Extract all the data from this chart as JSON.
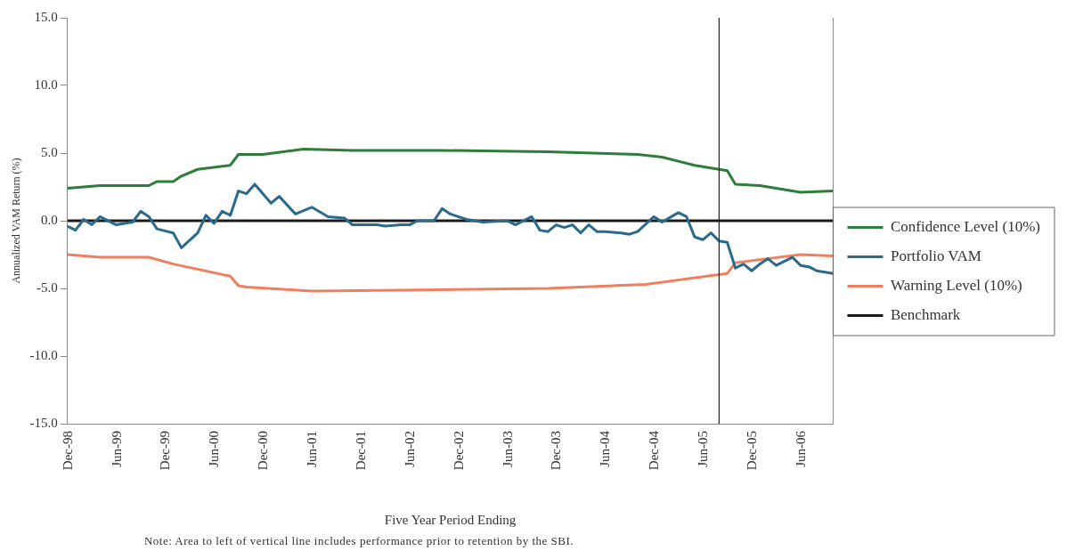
{
  "chart_data": {
    "type": "line",
    "xlabel": "Five Year Period Ending",
    "ylabel": "Annualized VAM Return (%)",
    "annotations": [
      "Note: Area to left of vertical line includes performance prior to retention by the SBI."
    ],
    "xlim": [
      "1998-12",
      "2006-10"
    ],
    "xticks": [
      {
        "value": "1998-12",
        "label": "Dec-98"
      },
      {
        "value": "1999-06",
        "label": "Jun-99"
      },
      {
        "value": "1999-12",
        "label": "Dec-99"
      },
      {
        "value": "2000-06",
        "label": "Jun-00"
      },
      {
        "value": "2000-12",
        "label": "Dec-00"
      },
      {
        "value": "2001-06",
        "label": "Jun-01"
      },
      {
        "value": "2001-12",
        "label": "Dec-01"
      },
      {
        "value": "2002-06",
        "label": "Jun-02"
      },
      {
        "value": "2002-12",
        "label": "Dec-02"
      },
      {
        "value": "2003-06",
        "label": "Jun-03"
      },
      {
        "value": "2003-12",
        "label": "Dec-03"
      },
      {
        "value": "2004-06",
        "label": "Jun-04"
      },
      {
        "value": "2004-12",
        "label": "Dec-04"
      },
      {
        "value": "2005-06",
        "label": "Jun-05"
      },
      {
        "value": "2005-12",
        "label": "Dec-05"
      },
      {
        "value": "2006-06",
        "label": "Jun-06"
      }
    ],
    "ylim": [
      -15,
      15
    ],
    "yticks": [
      {
        "value": -15,
        "label": "-15.0"
      },
      {
        "value": -10,
        "label": "-10.0"
      },
      {
        "value": -5,
        "label": "-5.0"
      },
      {
        "value": 0,
        "label": "0.0"
      },
      {
        "value": 5,
        "label": "5.0"
      },
      {
        "value": 10,
        "label": "10.0"
      },
      {
        "value": 15,
        "label": "15.0"
      }
    ],
    "grid": false,
    "legend": "right",
    "ref_lines": [
      {
        "axis": "x",
        "value": "2005-08",
        "color": "#222222"
      }
    ],
    "series": [
      {
        "name": "Confidence Level (10%)",
        "color": "#2e7d3a",
        "x": [
          "1998-12",
          "1999-04",
          "1999-10",
          "1999-11",
          "2000-01",
          "2000-02",
          "2000-04",
          "2000-08",
          "2000-09",
          "2000-12",
          "2001-05",
          "2001-11",
          "2002-10",
          "2003-11",
          "2004-10",
          "2005-01",
          "2005-05",
          "2005-09",
          "2005-10",
          "2006-01",
          "2006-06",
          "2006-10"
        ],
        "values": [
          2.4,
          2.6,
          2.6,
          2.9,
          2.9,
          3.3,
          3.8,
          4.1,
          4.9,
          4.9,
          5.3,
          5.2,
          5.2,
          5.1,
          4.9,
          4.7,
          4.1,
          3.7,
          2.7,
          2.6,
          2.1,
          2.2
        ]
      },
      {
        "name": "Portfolio VAM",
        "color": "#2a6a8c",
        "x": [
          "1998-12",
          "1999-01",
          "1999-02",
          "1999-03",
          "1999-04",
          "1999-06",
          "1999-08",
          "1999-09",
          "1999-10",
          "1999-11",
          "2000-01",
          "2000-02",
          "2000-04",
          "2000-05",
          "2000-06",
          "2000-07",
          "2000-08",
          "2000-09",
          "2000-10",
          "2000-11",
          "2001-01",
          "2001-02",
          "2001-04",
          "2001-06",
          "2001-08",
          "2001-10",
          "2001-11",
          "2002-02",
          "2002-03",
          "2002-05",
          "2002-06",
          "2002-07",
          "2002-09",
          "2002-10",
          "2002-11",
          "2003-01",
          "2003-03",
          "2003-06",
          "2003-07",
          "2003-09",
          "2003-10",
          "2003-11",
          "2003-12",
          "2004-01",
          "2004-02",
          "2004-03",
          "2004-04",
          "2004-05",
          "2004-06",
          "2004-08",
          "2004-09",
          "2004-10",
          "2004-12",
          "2005-01",
          "2005-03",
          "2005-04",
          "2005-05",
          "2005-06",
          "2005-07",
          "2005-08",
          "2005-09",
          "2005-10",
          "2005-11",
          "2005-12",
          "2006-01",
          "2006-02",
          "2006-03",
          "2006-05",
          "2006-06",
          "2006-07",
          "2006-08",
          "2006-10"
        ],
        "values": [
          -0.4,
          -0.7,
          0.1,
          -0.3,
          0.3,
          -0.3,
          -0.1,
          0.7,
          0.3,
          -0.6,
          -0.9,
          -2.0,
          -0.9,
          0.4,
          -0.2,
          0.7,
          0.4,
          2.2,
          2.0,
          2.7,
          1.3,
          1.8,
          0.5,
          1.0,
          0.3,
          0.2,
          -0.3,
          -0.3,
          -0.4,
          -0.3,
          -0.3,
          0.0,
          0.0,
          0.9,
          0.5,
          0.1,
          -0.1,
          0.0,
          -0.3,
          0.3,
          -0.7,
          -0.8,
          -0.3,
          -0.5,
          -0.3,
          -0.9,
          -0.3,
          -0.8,
          -0.8,
          -0.9,
          -1.0,
          -0.8,
          0.3,
          -0.1,
          0.6,
          0.3,
          -1.2,
          -1.4,
          -0.9,
          -1.5,
          -1.6,
          -3.5,
          -3.2,
          -3.7,
          -3.2,
          -2.8,
          -3.3,
          -2.7,
          -3.3,
          -3.4,
          -3.7,
          -3.9
        ]
      },
      {
        "name": "Warning Level (10%)",
        "color": "#f07f60",
        "x": [
          "1998-12",
          "1999-04",
          "1999-10",
          "2000-01",
          "2000-08",
          "2000-09",
          "2000-10",
          "2001-06",
          "2002-10",
          "2003-11",
          "2004-11",
          "2005-09",
          "2005-10",
          "2006-06",
          "2006-10"
        ],
        "values": [
          -2.5,
          -2.7,
          -2.7,
          -3.2,
          -4.1,
          -4.8,
          -4.9,
          -5.2,
          -5.1,
          -5.0,
          -4.7,
          -3.9,
          -3.1,
          -2.5,
          -2.6
        ]
      },
      {
        "name": "Benchmark",
        "color": "#1a1a1a",
        "x": [
          "1998-12",
          "2006-10"
        ],
        "values": [
          0,
          0
        ]
      }
    ]
  }
}
